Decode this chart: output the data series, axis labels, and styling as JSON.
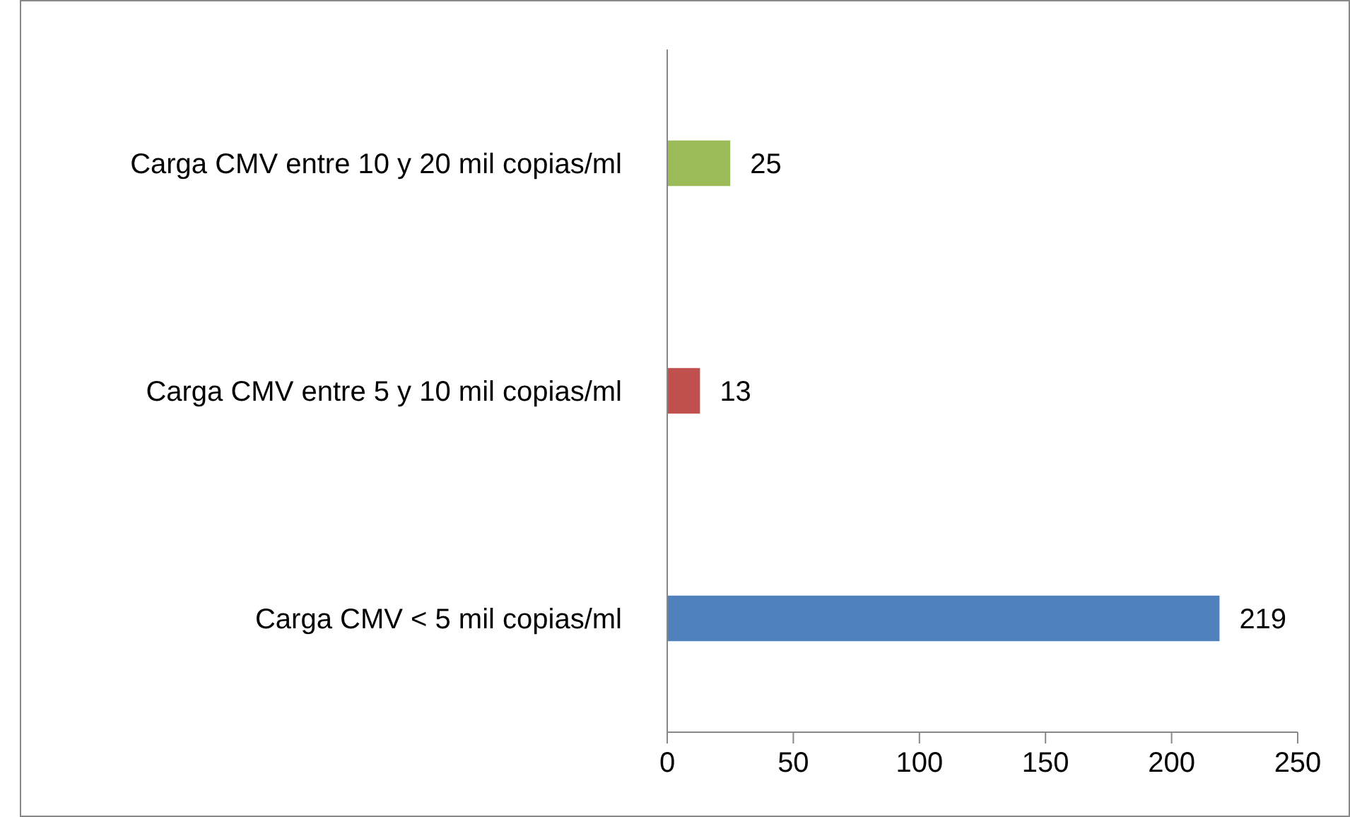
{
  "chart_data": {
    "type": "bar",
    "orientation": "horizontal",
    "categories": [
      "Carga CMV entre 10 y 20 mil copias/ml",
      "Carga CMV entre 5 y 10 mil copias/ml",
      "Carga CMV < 5 mil copias/ml"
    ],
    "values": [
      25,
      13,
      219
    ],
    "colors": [
      "#9bbb59",
      "#c0504d",
      "#4f81bd"
    ],
    "xlim": [
      0,
      250
    ],
    "xticks": [
      0,
      50,
      100,
      150,
      200,
      250
    ],
    "data_labels": true
  }
}
